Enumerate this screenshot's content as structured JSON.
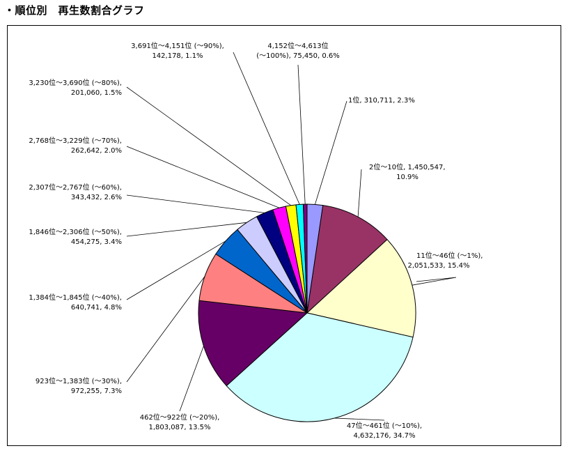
{
  "page": {
    "title": "・順位別　再生数割合グラフ"
  },
  "chart_data": {
    "type": "pie",
    "title": "",
    "legend": "none",
    "slices": [
      {
        "line1": "1位, 310,711, 2.3%",
        "line2": "",
        "value": 310711,
        "percent": 2.3,
        "color": "#9999ff"
      },
      {
        "line1": "2位〜10位, 1,450,547,",
        "line2": "10.9%",
        "value": 1450547,
        "percent": 10.9,
        "color": "#993366"
      },
      {
        "line1": "11位〜46位 (〜1%),",
        "line2": "2,051,533, 15.4%",
        "value": 2051533,
        "percent": 15.4,
        "color": "#ffffcc"
      },
      {
        "line1": "47位〜461位 (〜10%),",
        "line2": "4,632,176, 34.7%",
        "value": 4632176,
        "percent": 34.7,
        "color": "#ccffff"
      },
      {
        "line1": "462位〜922位 (〜20%),",
        "line2": "1,803,087, 13.5%",
        "value": 1803087,
        "percent": 13.5,
        "color": "#660066"
      },
      {
        "line1": "923位〜1,383位 (〜30%),",
        "line2": "972,255, 7.3%",
        "value": 972255,
        "percent": 7.3,
        "color": "#ff8080"
      },
      {
        "line1": "1,384位〜1,845位 (〜40%),",
        "line2": "640,741, 4.8%",
        "value": 640741,
        "percent": 4.8,
        "color": "#0066cc"
      },
      {
        "line1": "1,846位〜2,306位 (〜50%),",
        "line2": "454,275, 3.4%",
        "value": 454275,
        "percent": 3.4,
        "color": "#ccccff"
      },
      {
        "line1": "2,307位〜2,767位 (〜60%),",
        "line2": "343,432, 2.6%",
        "value": 343432,
        "percent": 2.6,
        "color": "#000080"
      },
      {
        "line1": "2,768位〜3,229位 (〜70%),",
        "line2": "262,642, 2.0%",
        "value": 262642,
        "percent": 2.0,
        "color": "#ff00ff"
      },
      {
        "line1": "3,230位〜3,690位 (〜80%),",
        "line2": "201,060, 1.5%",
        "value": 201060,
        "percent": 1.5,
        "color": "#ffff00"
      },
      {
        "line1": "3,691位〜4,151位 (〜90%),",
        "line2": "142,178, 1.1%",
        "value": 142178,
        "percent": 1.1,
        "color": "#00ffff"
      },
      {
        "line1": "4,152位〜4,613位",
        "line2": "(〜100%), 75,450, 0.6%",
        "value": 75450,
        "percent": 0.6,
        "color": "#800080"
      }
    ]
  }
}
